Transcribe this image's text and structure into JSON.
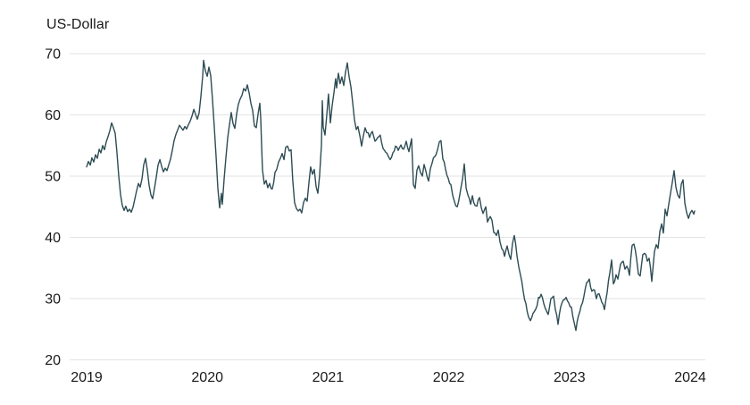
{
  "chart_data": {
    "type": "line",
    "title": "",
    "ylabel": "US-Dollar",
    "series_name": "US-Dollar",
    "xlim": [
      2019,
      2024.1
    ],
    "ylim": [
      20,
      70
    ],
    "yticks": [
      20,
      30,
      40,
      50,
      60,
      70
    ],
    "xticks": [
      2019,
      2020,
      2021,
      2022,
      2023,
      2024
    ],
    "grid": "horizontal",
    "legend_position": "none",
    "colors": {
      "line": "#2d4c54",
      "grid": "#e3e3e3",
      "text": "#1a1a1a",
      "background": "#ffffff"
    },
    "daily_noise": 0.38,
    "points": [
      [
        2019.0,
        51.5
      ],
      [
        2019.015,
        52.4
      ],
      [
        2019.03,
        51.8
      ],
      [
        2019.044,
        53.0
      ],
      [
        2019.059,
        52.3
      ],
      [
        2019.074,
        53.5
      ],
      [
        2019.089,
        52.9
      ],
      [
        2019.104,
        54.4
      ],
      [
        2019.118,
        53.8
      ],
      [
        2019.133,
        55.0
      ],
      [
        2019.148,
        54.3
      ],
      [
        2019.163,
        55.6
      ],
      [
        2019.178,
        56.5
      ],
      [
        2019.192,
        57.4
      ],
      [
        2019.207,
        58.7
      ],
      [
        2019.222,
        57.9
      ],
      [
        2019.237,
        57.0
      ],
      [
        2019.251,
        54.0
      ],
      [
        2019.266,
        50.0
      ],
      [
        2019.281,
        47.0
      ],
      [
        2019.296,
        45.2
      ],
      [
        2019.311,
        44.4
      ],
      [
        2019.325,
        45.1
      ],
      [
        2019.34,
        44.2
      ],
      [
        2019.355,
        44.6
      ],
      [
        2019.37,
        44.1
      ],
      [
        2019.385,
        45.0
      ],
      [
        2019.399,
        46.2
      ],
      [
        2019.414,
        47.6
      ],
      [
        2019.429,
        48.8
      ],
      [
        2019.444,
        48.2
      ],
      [
        2019.459,
        49.6
      ],
      [
        2019.473,
        51.8
      ],
      [
        2019.488,
        52.9
      ],
      [
        2019.503,
        51.0
      ],
      [
        2019.518,
        48.5
      ],
      [
        2019.533,
        46.9
      ],
      [
        2019.547,
        46.3
      ],
      [
        2019.562,
        48.0
      ],
      [
        2019.577,
        49.8
      ],
      [
        2019.592,
        51.8
      ],
      [
        2019.607,
        52.7
      ],
      [
        2019.621,
        51.6
      ],
      [
        2019.636,
        50.7
      ],
      [
        2019.651,
        51.3
      ],
      [
        2019.666,
        50.9
      ],
      [
        2019.68,
        51.8
      ],
      [
        2019.695,
        52.8
      ],
      [
        2019.71,
        54.2
      ],
      [
        2019.725,
        55.8
      ],
      [
        2019.74,
        56.8
      ],
      [
        2019.754,
        57.5
      ],
      [
        2019.769,
        58.3
      ],
      [
        2019.784,
        57.9
      ],
      [
        2019.799,
        57.5
      ],
      [
        2019.814,
        58.1
      ],
      [
        2019.828,
        57.7
      ],
      [
        2019.843,
        58.4
      ],
      [
        2019.858,
        59.0
      ],
      [
        2019.873,
        59.8
      ],
      [
        2019.888,
        60.9
      ],
      [
        2019.902,
        60.1
      ],
      [
        2019.917,
        59.3
      ],
      [
        2019.932,
        60.3
      ],
      [
        2019.947,
        63.0
      ],
      [
        2019.962,
        66.5
      ],
      [
        2019.969,
        68.9
      ],
      [
        2019.984,
        67.2
      ],
      [
        2019.999,
        66.3
      ],
      [
        2020.013,
        67.8
      ],
      [
        2020.028,
        66.4
      ],
      [
        2020.043,
        62.5
      ],
      [
        2020.058,
        58.0
      ],
      [
        2020.072,
        53.5
      ],
      [
        2020.087,
        48.0
      ],
      [
        2020.102,
        44.8
      ],
      [
        2020.117,
        47.2
      ],
      [
        2020.124,
        45.4
      ],
      [
        2020.139,
        49.5
      ],
      [
        2020.154,
        53.0
      ],
      [
        2020.169,
        56.2
      ],
      [
        2020.183,
        58.3
      ],
      [
        2020.198,
        60.4
      ],
      [
        2020.213,
        58.6
      ],
      [
        2020.228,
        57.8
      ],
      [
        2020.243,
        60.2
      ],
      [
        2020.257,
        61.7
      ],
      [
        2020.272,
        62.6
      ],
      [
        2020.287,
        63.2
      ],
      [
        2020.302,
        64.3
      ],
      [
        2020.317,
        63.9
      ],
      [
        2020.331,
        64.9
      ],
      [
        2020.346,
        63.6
      ],
      [
        2020.361,
        61.9
      ],
      [
        2020.376,
        60.7
      ],
      [
        2020.39,
        58.2
      ],
      [
        2020.405,
        57.9
      ],
      [
        2020.42,
        60.1
      ],
      [
        2020.435,
        61.9
      ],
      [
        2020.442,
        59.5
      ],
      [
        2020.45,
        55.0
      ],
      [
        2020.457,
        51.0
      ],
      [
        2020.472,
        48.7
      ],
      [
        2020.487,
        49.3
      ],
      [
        2020.501,
        48.1
      ],
      [
        2020.516,
        48.8
      ],
      [
        2020.538,
        47.9
      ],
      [
        2020.561,
        50.6
      ],
      [
        2020.575,
        51.1
      ],
      [
        2020.59,
        52.3
      ],
      [
        2020.605,
        52.9
      ],
      [
        2020.62,
        53.7
      ],
      [
        2020.635,
        52.7
      ],
      [
        2020.649,
        54.7
      ],
      [
        2020.664,
        54.9
      ],
      [
        2020.679,
        54.1
      ],
      [
        2020.694,
        54.3
      ],
      [
        2020.708,
        49.3
      ],
      [
        2020.723,
        45.7
      ],
      [
        2020.738,
        44.7
      ],
      [
        2020.753,
        44.3
      ],
      [
        2020.768,
        44.6
      ],
      [
        2020.782,
        44.0
      ],
      [
        2020.797,
        45.7
      ],
      [
        2020.812,
        46.4
      ],
      [
        2020.827,
        45.9
      ],
      [
        2020.842,
        48.9
      ],
      [
        2020.856,
        51.5
      ],
      [
        2020.871,
        50.3
      ],
      [
        2020.886,
        51.1
      ],
      [
        2020.901,
        48.3
      ],
      [
        2020.916,
        47.2
      ],
      [
        2020.93,
        50.0
      ],
      [
        2020.945,
        55.0
      ],
      [
        2020.953,
        62.3
      ],
      [
        2020.96,
        58.0
      ],
      [
        2020.975,
        56.7
      ],
      [
        2020.99,
        60.0
      ],
      [
        2021.004,
        63.4
      ],
      [
        2021.019,
        58.7
      ],
      [
        2021.034,
        61.5
      ],
      [
        2021.049,
        63.6
      ],
      [
        2021.063,
        65.9
      ],
      [
        2021.071,
        64.4
      ],
      [
        2021.086,
        66.8
      ],
      [
        2021.1,
        65.1
      ],
      [
        2021.115,
        66.2
      ],
      [
        2021.13,
        64.8
      ],
      [
        2021.145,
        67.0
      ],
      [
        2021.16,
        68.5
      ],
      [
        2021.174,
        66.3
      ],
      [
        2021.189,
        64.6
      ],
      [
        2021.204,
        62.0
      ],
      [
        2021.219,
        59.2
      ],
      [
        2021.234,
        57.6
      ],
      [
        2021.248,
        58.1
      ],
      [
        2021.263,
        56.6
      ],
      [
        2021.278,
        54.9
      ],
      [
        2021.293,
        56.6
      ],
      [
        2021.307,
        57.9
      ],
      [
        2021.322,
        57.1
      ],
      [
        2021.344,
        56.3
      ],
      [
        2021.367,
        57.3
      ],
      [
        2021.389,
        55.7
      ],
      [
        2021.411,
        56.3
      ],
      [
        2021.433,
        56.7
      ],
      [
        2021.456,
        54.5
      ],
      [
        2021.478,
        53.9
      ],
      [
        2021.5,
        53.2
      ],
      [
        2021.515,
        52.7
      ],
      [
        2021.537,
        53.8
      ],
      [
        2021.559,
        54.9
      ],
      [
        2021.581,
        54.2
      ],
      [
        2021.604,
        55.1
      ],
      [
        2021.626,
        54.4
      ],
      [
        2021.648,
        55.7
      ],
      [
        2021.67,
        54.0
      ],
      [
        2021.692,
        56.1
      ],
      [
        2021.707,
        48.6
      ],
      [
        2021.722,
        48.0
      ],
      [
        2021.737,
        51.0
      ],
      [
        2021.751,
        51.7
      ],
      [
        2021.766,
        50.6
      ],
      [
        2021.781,
        50.0
      ],
      [
        2021.796,
        51.9
      ],
      [
        2021.811,
        50.8
      ],
      [
        2021.833,
        49.2
      ],
      [
        2021.848,
        51.2
      ],
      [
        2021.862,
        52.1
      ],
      [
        2021.885,
        53.2
      ],
      [
        2021.907,
        54.3
      ],
      [
        2021.922,
        55.6
      ],
      [
        2021.936,
        55.8
      ],
      [
        2021.951,
        52.8
      ],
      [
        2021.973,
        51.2
      ],
      [
        2021.996,
        49.6
      ],
      [
        2022.018,
        48.6
      ],
      [
        2022.033,
        46.8
      ],
      [
        2022.048,
        45.8
      ],
      [
        2022.07,
        45.0
      ],
      [
        2022.092,
        47.0
      ],
      [
        2022.114,
        49.5
      ],
      [
        2022.129,
        52.0
      ],
      [
        2022.144,
        48.0
      ],
      [
        2022.159,
        46.9
      ],
      [
        2022.181,
        45.4
      ],
      [
        2022.196,
        46.8
      ],
      [
        2022.218,
        45.2
      ],
      [
        2022.233,
        45.1
      ],
      [
        2022.255,
        46.5
      ],
      [
        2022.27,
        44.8
      ],
      [
        2022.284,
        43.9
      ],
      [
        2022.307,
        45.0
      ],
      [
        2022.321,
        42.5
      ],
      [
        2022.344,
        43.4
      ],
      [
        2022.358,
        42.8
      ],
      [
        2022.373,
        40.8
      ],
      [
        2022.395,
        40.3
      ],
      [
        2022.41,
        41.2
      ],
      [
        2022.425,
        39.2
      ],
      [
        2022.44,
        38.1
      ],
      [
        2022.462,
        36.9
      ],
      [
        2022.484,
        38.6
      ],
      [
        2022.499,
        37.2
      ],
      [
        2022.513,
        36.4
      ],
      [
        2022.528,
        39.0
      ],
      [
        2022.543,
        40.3
      ],
      [
        2022.565,
        37.0
      ],
      [
        2022.58,
        35.2
      ],
      [
        2022.595,
        33.8
      ],
      [
        2022.617,
        31.2
      ],
      [
        2022.639,
        29.2
      ],
      [
        2022.661,
        27.0
      ],
      [
        2022.676,
        26.4
      ],
      [
        2022.698,
        27.6
      ],
      [
        2022.721,
        28.3
      ],
      [
        2022.743,
        30.2
      ],
      [
        2022.765,
        30.7
      ],
      [
        2022.787,
        29.2
      ],
      [
        2022.809,
        28.0
      ],
      [
        2022.824,
        27.4
      ],
      [
        2022.846,
        30.0
      ],
      [
        2022.868,
        30.4
      ],
      [
        2022.883,
        28.2
      ],
      [
        2022.905,
        25.8
      ],
      [
        2022.927,
        28.6
      ],
      [
        2022.95,
        29.8
      ],
      [
        2022.972,
        30.2
      ],
      [
        2022.994,
        29.3
      ],
      [
        2023.016,
        28.6
      ],
      [
        2023.038,
        26.2
      ],
      [
        2023.053,
        24.8
      ],
      [
        2023.075,
        27.2
      ],
      [
        2023.097,
        28.8
      ],
      [
        2023.12,
        30.4
      ],
      [
        2023.142,
        32.6
      ],
      [
        2023.164,
        33.2
      ],
      [
        2023.186,
        31.2
      ],
      [
        2023.208,
        31.4
      ],
      [
        2023.223,
        30.0
      ],
      [
        2023.245,
        30.8
      ],
      [
        2023.268,
        29.4
      ],
      [
        2023.29,
        28.2
      ],
      [
        2023.312,
        31.0
      ],
      [
        2023.334,
        34.2
      ],
      [
        2023.349,
        36.3
      ],
      [
        2023.364,
        32.4
      ],
      [
        2023.386,
        33.9
      ],
      [
        2023.401,
        33.2
      ],
      [
        2023.423,
        35.6
      ],
      [
        2023.445,
        36.1
      ],
      [
        2023.46,
        34.8
      ],
      [
        2023.475,
        35.3
      ],
      [
        2023.497,
        33.8
      ],
      [
        2023.519,
        38.7
      ],
      [
        2023.534,
        38.9
      ],
      [
        2023.556,
        36.5
      ],
      [
        2023.571,
        34.0
      ],
      [
        2023.586,
        33.7
      ],
      [
        2023.608,
        37.2
      ],
      [
        2023.623,
        37.4
      ],
      [
        2023.645,
        36.1
      ],
      [
        2023.66,
        36.6
      ],
      [
        2023.682,
        32.8
      ],
      [
        2023.704,
        37.7
      ],
      [
        2023.719,
        38.8
      ],
      [
        2023.734,
        38.2
      ],
      [
        2023.749,
        41.0
      ],
      [
        2023.764,
        42.2
      ],
      [
        2023.778,
        40.7
      ],
      [
        2023.793,
        44.6
      ],
      [
        2023.808,
        43.5
      ],
      [
        2023.823,
        45.5
      ],
      [
        2023.838,
        47.3
      ],
      [
        2023.852,
        49.0
      ],
      [
        2023.867,
        50.9
      ],
      [
        2023.882,
        48.2
      ],
      [
        2023.897,
        46.9
      ],
      [
        2023.912,
        46.4
      ],
      [
        2023.927,
        48.7
      ],
      [
        2023.941,
        49.4
      ],
      [
        2023.956,
        45.5
      ],
      [
        2023.971,
        44.0
      ],
      [
        2023.986,
        43.1
      ],
      [
        2024.001,
        44.0
      ],
      [
        2024.015,
        44.4
      ],
      [
        2024.03,
        43.8
      ],
      [
        2024.037,
        44.3
      ]
    ]
  }
}
